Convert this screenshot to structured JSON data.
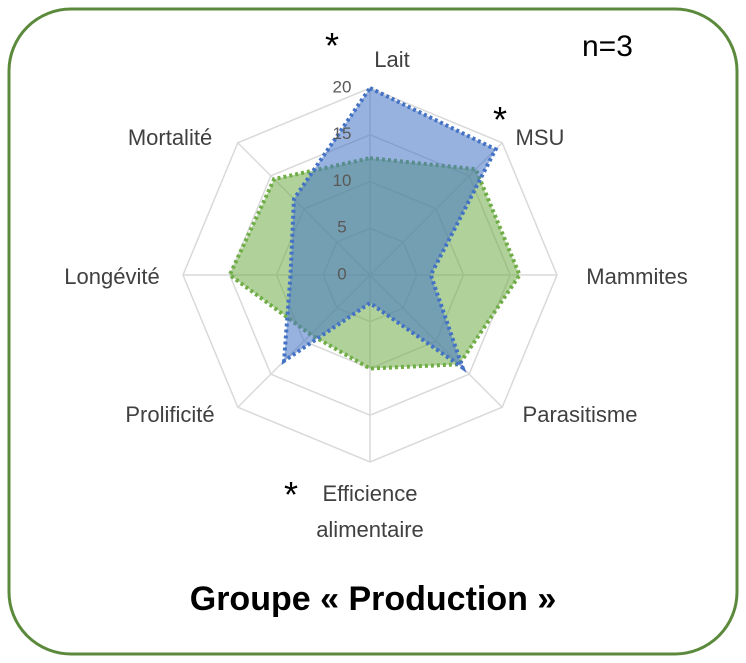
{
  "chart_data": {
    "type": "radar",
    "title": "Groupe « Production »",
    "subtitle": "n=3",
    "categories": [
      "Lait",
      "MSU",
      "Mammites",
      "Parasitisme",
      "Efficience alimentaire",
      "Prolificité",
      "Longévité",
      "Mortalité"
    ],
    "annotations": [
      "*",
      "*",
      "*"
    ],
    "rlim": [
      0,
      20
    ],
    "rticks": [
      0,
      5,
      10,
      15,
      20
    ],
    "grid": true,
    "series": [
      {
        "color": "#70ad47",
        "values": [
          12.5,
          16,
          16,
          13.5,
          10,
          9,
          15,
          14.5
        ]
      },
      {
        "color": "#4472c4",
        "values": [
          20,
          19,
          6.5,
          14,
          3,
          13,
          8.5,
          11.5
        ]
      }
    ]
  }
}
